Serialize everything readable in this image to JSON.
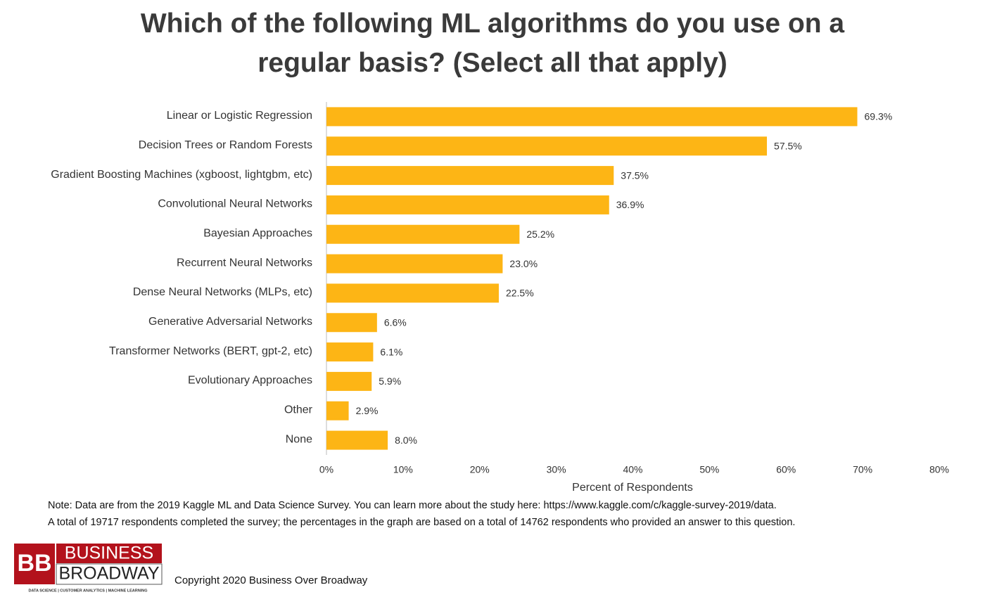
{
  "chart_data": {
    "type": "bar",
    "orientation": "horizontal",
    "title": "Which of the following ML algorithms do you use on a regular basis? (Select all that apply)",
    "xlabel": "Percent of Respondents",
    "categories": [
      "Linear or Logistic Regression",
      "Decision Trees or Random Forests",
      "Gradient Boosting Machines (xgboost, lightgbm, etc)",
      "Convolutional Neural Networks",
      "Bayesian Approaches",
      "Recurrent Neural Networks",
      "Dense Neural Networks (MLPs, etc)",
      "Generative Adversarial Networks",
      "Transformer Networks (BERT, gpt-2, etc)",
      "Evolutionary Approaches",
      "Other",
      "None"
    ],
    "values": [
      69.3,
      57.5,
      37.5,
      36.9,
      25.2,
      23.0,
      22.5,
      6.6,
      6.1,
      5.9,
      2.9,
      8.0
    ],
    "value_labels": [
      "69.3%",
      "57.5%",
      "37.5%",
      "36.9%",
      "25.2%",
      "23.0%",
      "22.5%",
      "6.6%",
      "6.1%",
      "5.9%",
      "2.9%",
      "8.0%"
    ],
    "color": "#fdb515",
    "xlim": [
      0,
      80
    ],
    "xticks": [
      {
        "value": 0,
        "label": "0%"
      },
      {
        "value": 10,
        "label": "10%"
      },
      {
        "value": 20,
        "label": "20%"
      },
      {
        "value": 30,
        "label": "30%"
      },
      {
        "value": 40,
        "label": "40%"
      },
      {
        "value": 50,
        "label": "50%"
      },
      {
        "value": 60,
        "label": "60%"
      },
      {
        "value": 70,
        "label": "70%"
      },
      {
        "value": 80,
        "label": "80%"
      }
    ],
    "grid": false
  },
  "notes": [
    "Note: Data are from the 2019 Kaggle ML and Data Science Survey. You can learn more about the study here: https://www.kaggle.com/c/kaggle-survey-2019/data.",
    "A total of 19717 respondents completed the survey; the percentages in the graph are based on a total of 14762 respondents who provided an answer to this question."
  ],
  "logo": {
    "mark": "BB",
    "line1": "BUSINESS",
    "line2": "BROADWAY",
    "tagline": "DATA SCIENCE | CUSTOMER ANALYTICS | MACHINE LEARNING"
  },
  "copyright": "Copyright 2020 Business Over Broadway"
}
